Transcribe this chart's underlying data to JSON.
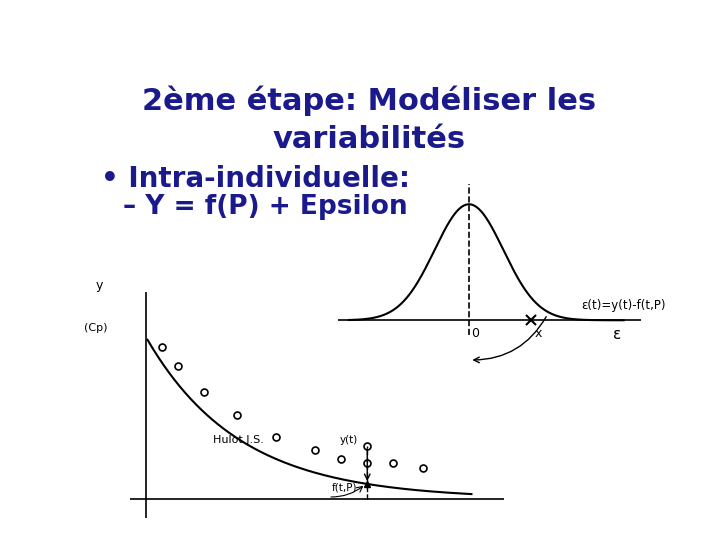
{
  "title_line1": "2ème étape: Modéliser les",
  "title_line2": "variabilités",
  "bullet": "Intra-individuelle:",
  "dash_item": "– Y = f(P) + Epsilon",
  "credit": "Hulot J.S.",
  "title_color": "#1a1a8c",
  "bullet_color": "#1a1a8c",
  "dash_color": "#1a1a8c",
  "bg_color": "#ffffff",
  "title_fontsize": 22,
  "bullet_fontsize": 20,
  "dash_fontsize": 19
}
